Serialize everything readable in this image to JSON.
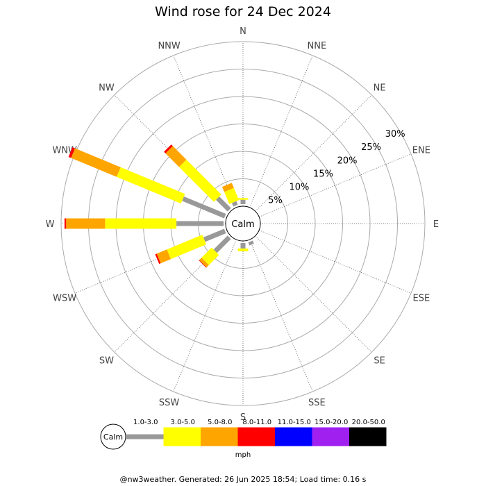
{
  "title": "Wind rose for 24 Dec 2024",
  "footer": "@nw3weather. Generated: 26 Jun 2025 18:54; Load time: 0.16 s",
  "chart_data": {
    "type": "wind-rose",
    "title": "Wind rose for 24 Dec 2024",
    "directions": [
      "N",
      "NNE",
      "NE",
      "ENE",
      "E",
      "ESE",
      "SE",
      "SSE",
      "S",
      "SSW",
      "SW",
      "WSW",
      "W",
      "WNW",
      "NW",
      "NNW"
    ],
    "radial_ticks": [
      "5%",
      "10%",
      "15%",
      "20%",
      "25%",
      "30%"
    ],
    "radial_values": [
      5,
      10,
      15,
      20,
      25,
      30
    ],
    "rmax": 30,
    "grid": true,
    "calm_label": "Calm",
    "unit": "mph",
    "speed_bins": [
      {
        "label": "1.0-3.0",
        "color": "#999999"
      },
      {
        "label": "3.0-5.0",
        "color": "#ffff00"
      },
      {
        "label": "5.0-8.0",
        "color": "#ffa500"
      },
      {
        "label": "8.0-11.0",
        "color": "#ff0000"
      },
      {
        "label": "11.0-15.0",
        "color": "#0000ff"
      },
      {
        "label": "15.0-20.0",
        "color": "#a020f0"
      },
      {
        "label": "20.0-50.0",
        "color": "#000000"
      }
    ],
    "series": [
      {
        "direction": "N",
        "values": [
          0.8,
          0.3,
          0,
          0,
          0,
          0,
          0
        ]
      },
      {
        "direction": "NNE",
        "values": [
          0,
          0,
          0,
          0,
          0,
          0,
          0
        ]
      },
      {
        "direction": "NE",
        "values": [
          0,
          0,
          0,
          0,
          0,
          0,
          0
        ]
      },
      {
        "direction": "ENE",
        "values": [
          0,
          0,
          0,
          0,
          0,
          0,
          0
        ]
      },
      {
        "direction": "E",
        "values": [
          0,
          0,
          0,
          0,
          0,
          0,
          0
        ]
      },
      {
        "direction": "ESE",
        "values": [
          0,
          0,
          0,
          0,
          0,
          0,
          0
        ]
      },
      {
        "direction": "SE",
        "values": [
          0,
          0,
          0,
          0,
          0,
          0,
          0
        ]
      },
      {
        "direction": "SSE",
        "values": [
          0.6,
          0,
          0,
          0,
          0,
          0,
          0
        ]
      },
      {
        "direction": "S",
        "values": [
          1.0,
          0.5,
          0,
          0,
          0,
          0,
          0
        ]
      },
      {
        "direction": "SSW",
        "values": [
          0,
          0,
          0,
          0,
          0,
          0,
          0
        ]
      },
      {
        "direction": "SW",
        "values": [
          3.6,
          2.6,
          0.6,
          0.1,
          0,
          0,
          0
        ]
      },
      {
        "direction": "WSW",
        "values": [
          4.1,
          7.0,
          2.0,
          0.3,
          0,
          0,
          0
        ]
      },
      {
        "direction": "W",
        "values": [
          8.6,
          13.0,
          7.1,
          0.3,
          0,
          0,
          0
        ]
      },
      {
        "direction": "WNW",
        "values": [
          8.3,
          12.7,
          9.0,
          0.5,
          0,
          0,
          0
        ]
      },
      {
        "direction": "NW",
        "values": [
          3.0,
          9.0,
          3.5,
          0.4,
          0,
          0,
          0
        ]
      },
      {
        "direction": "NNW",
        "values": [
          0.7,
          2.4,
          1.0,
          0,
          0,
          0,
          0
        ]
      }
    ]
  }
}
